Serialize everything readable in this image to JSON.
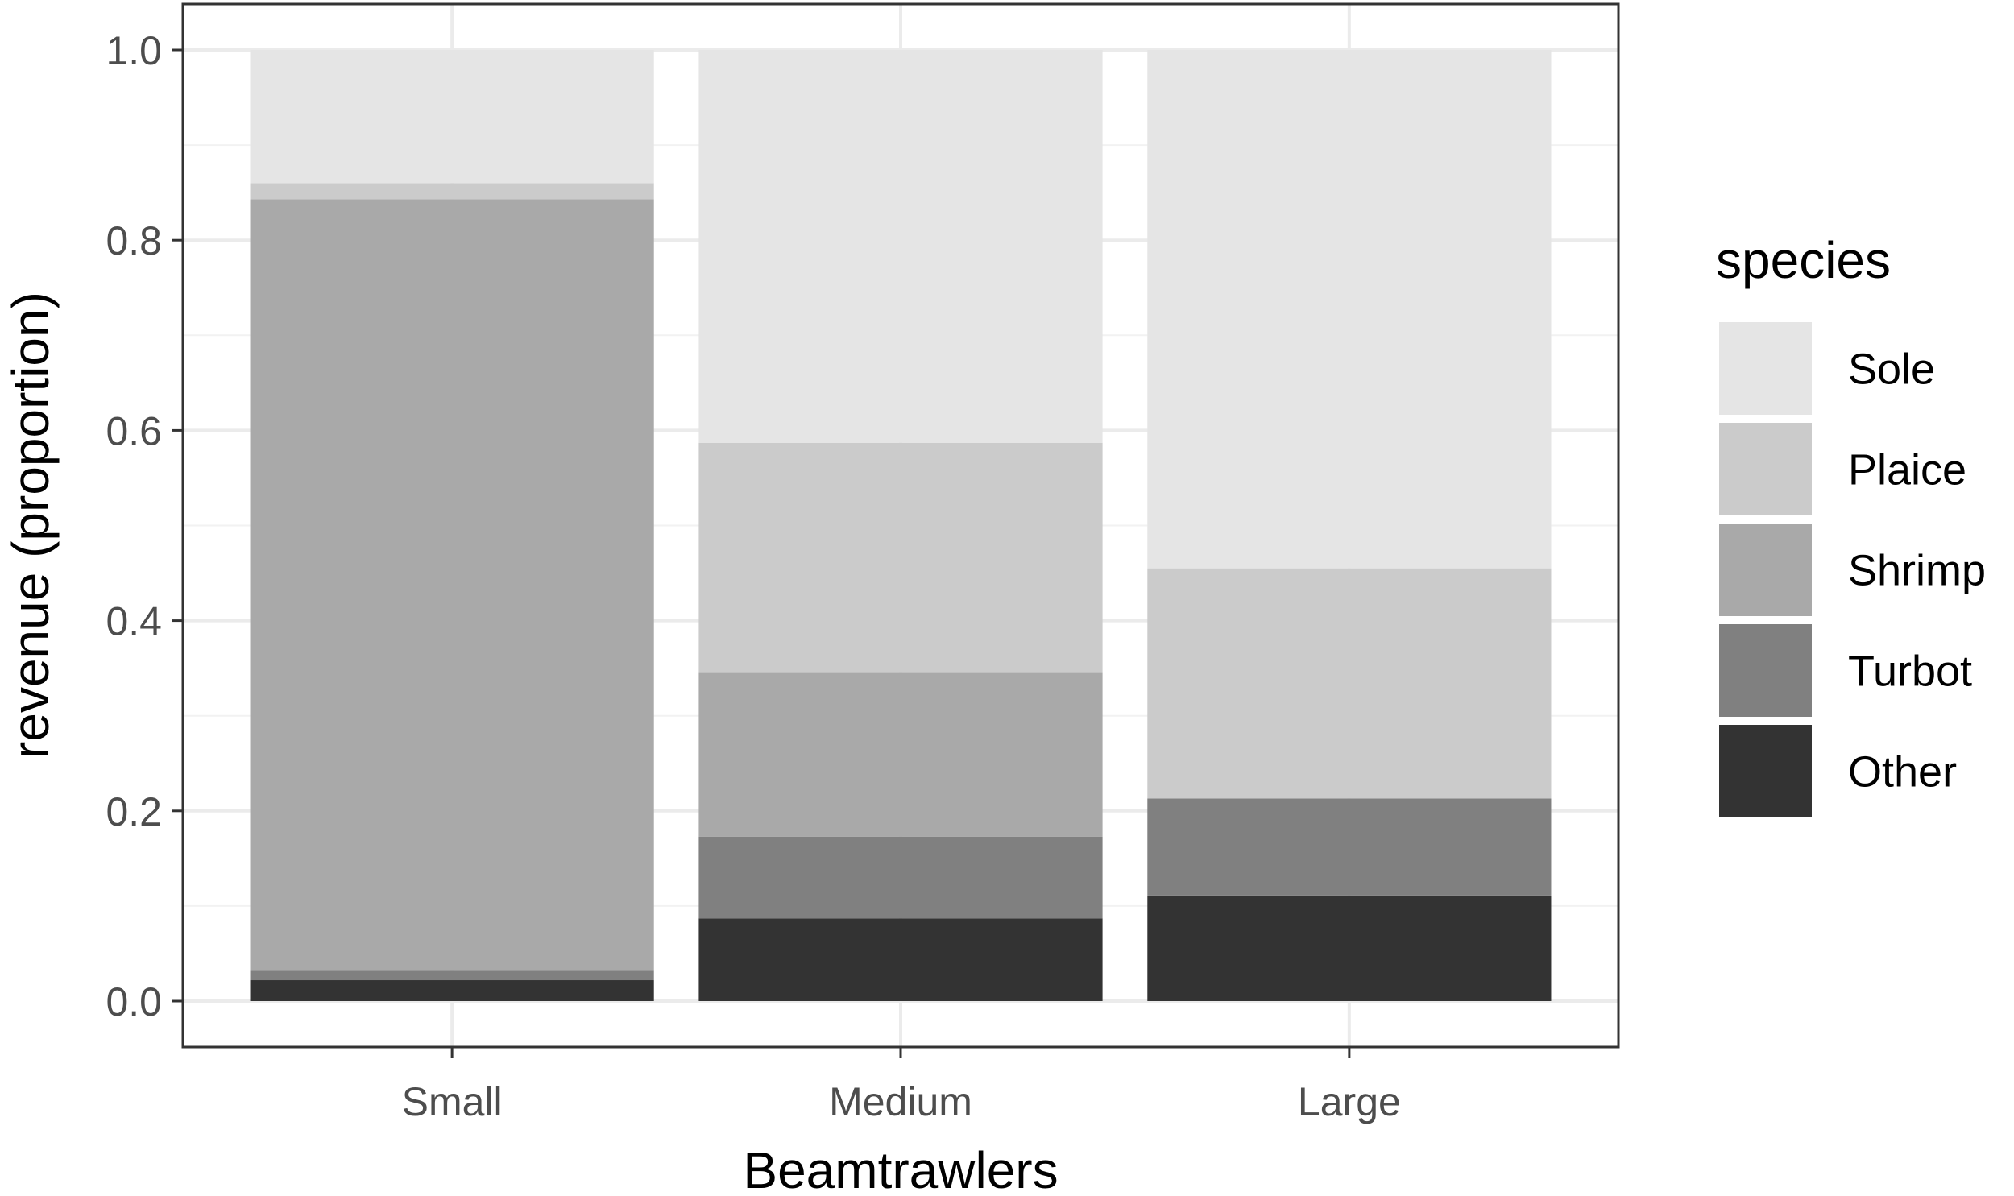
{
  "chart_data": {
    "type": "bar",
    "stacked": true,
    "xlabel": "Beamtrawlers",
    "ylabel": "revenue (proportion)",
    "ylim": [
      0,
      1
    ],
    "yticks": [
      0.0,
      0.2,
      0.4,
      0.6,
      0.8,
      1.0
    ],
    "ytick_labels": [
      "0.0",
      "0.2",
      "0.4",
      "0.6",
      "0.8",
      "1.0"
    ],
    "categories": [
      "Small",
      "Medium",
      "Large"
    ],
    "grid": true,
    "legend": {
      "title": "species",
      "position": "right"
    },
    "series": [
      {
        "name": "Sole",
        "color": "#e5e5e5",
        "values": [
          0.14,
          0.413,
          0.545
        ]
      },
      {
        "name": "Plaice",
        "color": "#cbcbcb",
        "values": [
          0.017,
          0.242,
          0.242
        ]
      },
      {
        "name": "Shrimp",
        "color": "#a9a9a9",
        "values": [
          0.811,
          0.172,
          0.0
        ]
      },
      {
        "name": "Turbot",
        "color": "#808080",
        "values": [
          0.01,
          0.086,
          0.102
        ]
      },
      {
        "name": "Other",
        "color": "#333333",
        "values": [
          0.022,
          0.087,
          0.111
        ]
      }
    ]
  }
}
